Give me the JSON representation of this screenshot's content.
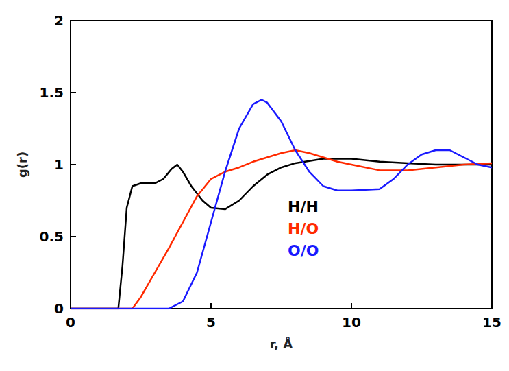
{
  "chart_data": {
    "type": "line",
    "x_label": "r, Å",
    "y_label": "g(r)",
    "xlim": [
      0,
      15
    ],
    "xticks": [
      0,
      5,
      10,
      15
    ],
    "ylim": [
      0,
      2
    ],
    "yticks": [
      0,
      0.5,
      1,
      1.5,
      2
    ],
    "grid": false,
    "legend": "lower center",
    "series": [
      {
        "name": "H/H",
        "color": "#000000",
        "x": [
          0,
          1.7,
          1.85,
          2.0,
          2.2,
          2.5,
          3.0,
          3.3,
          3.6,
          3.8,
          4.0,
          4.3,
          4.7,
          5.0,
          5.5,
          6.0,
          6.5,
          7.0,
          7.5,
          8.0,
          9.0,
          10.0,
          11.0,
          12.0,
          13.0,
          14.0,
          15.0
        ],
        "values": [
          0,
          0,
          0.3,
          0.7,
          0.85,
          0.87,
          0.87,
          0.9,
          0.97,
          1.0,
          0.95,
          0.85,
          0.75,
          0.7,
          0.69,
          0.75,
          0.85,
          0.93,
          0.98,
          1.01,
          1.04,
          1.04,
          1.02,
          1.01,
          1.0,
          1.0,
          1.0
        ]
      },
      {
        "name": "H/O",
        "color": "#ff2a00",
        "x": [
          0,
          2.2,
          2.5,
          3.0,
          3.5,
          4.0,
          4.5,
          5.0,
          5.5,
          6.0,
          6.5,
          7.0,
          7.5,
          8.0,
          8.5,
          9.0,
          9.5,
          10.0,
          11.0,
          12.0,
          13.0,
          14.0,
          15.0
        ],
        "values": [
          0,
          0,
          0.08,
          0.25,
          0.42,
          0.6,
          0.78,
          0.9,
          0.95,
          0.98,
          1.02,
          1.05,
          1.08,
          1.1,
          1.08,
          1.05,
          1.02,
          1.0,
          0.96,
          0.96,
          0.98,
          1.0,
          1.01
        ]
      },
      {
        "name": "O/O",
        "color": "#1a1aff",
        "x": [
          0,
          3.5,
          4.0,
          4.5,
          5.0,
          5.5,
          6.0,
          6.5,
          6.8,
          7.0,
          7.5,
          8.0,
          8.5,
          9.0,
          9.5,
          10.0,
          11.0,
          11.5,
          12.0,
          12.5,
          13.0,
          13.5,
          14.0,
          14.5,
          15.0
        ],
        "values": [
          0,
          0,
          0.05,
          0.25,
          0.6,
          0.95,
          1.25,
          1.42,
          1.45,
          1.43,
          1.3,
          1.1,
          0.95,
          0.85,
          0.82,
          0.82,
          0.83,
          0.9,
          1.0,
          1.07,
          1.1,
          1.1,
          1.05,
          1.0,
          0.98
        ]
      }
    ]
  }
}
